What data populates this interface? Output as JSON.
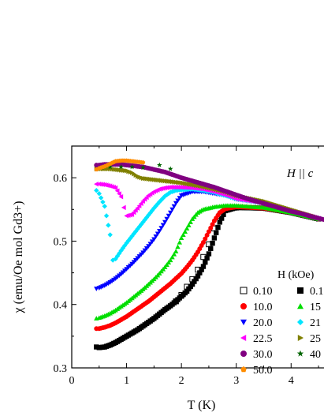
{
  "chart_data": {
    "type": "scatter",
    "title": "",
    "xlabel": "T (K)",
    "ylabel": "χ (emu/Oe mol Gd3+)",
    "xlim": [
      0,
      4.6
    ],
    "ylim": [
      0.3,
      0.65
    ],
    "x_ticks": [
      "0",
      "1",
      "2",
      "3",
      "4"
    ],
    "y_ticks": [
      "0.3",
      "0.4",
      "0.5",
      "0.6"
    ],
    "annotation": "H || c",
    "legend_title": "H (kOe)",
    "legend_position": "right-middle",
    "grid": false,
    "series": [
      {
        "name": "0.10",
        "marker": "open-square",
        "color": "#000000",
        "x": [
          1.9,
          2.0,
          2.1,
          2.2,
          2.3,
          2.4,
          2.5,
          2.6,
          2.7,
          2.8,
          3.0
        ],
        "y": [
          0.405,
          0.415,
          0.428,
          0.44,
          0.455,
          0.475,
          0.495,
          0.52,
          0.54,
          0.55,
          0.553
        ]
      },
      {
        "name": "0.1",
        "marker": "filled-square",
        "color": "#000000",
        "x": [
          0.45,
          0.5,
          0.6,
          0.7,
          0.8,
          0.9,
          1.0,
          1.1,
          1.2,
          1.3,
          1.4,
          1.5,
          1.6,
          1.7,
          1.8,
          1.9,
          2.0,
          2.1,
          2.2,
          2.3,
          2.4,
          2.5,
          2.6,
          2.7,
          2.8,
          3.0,
          3.5,
          4.0,
          4.5
        ],
        "y": [
          0.333,
          0.332,
          0.333,
          0.336,
          0.34,
          0.345,
          0.35,
          0.355,
          0.36,
          0.366,
          0.372,
          0.378,
          0.385,
          0.392,
          0.398,
          0.405,
          0.413,
          0.421,
          0.432,
          0.445,
          0.46,
          0.48,
          0.505,
          0.53,
          0.548,
          0.553,
          0.552,
          0.545,
          0.535
        ]
      },
      {
        "name": "10.0",
        "marker": "circle",
        "color": "#ff0000",
        "x": [
          0.45,
          0.5,
          0.6,
          0.7,
          0.8,
          0.9,
          1.0,
          1.1,
          1.2,
          1.3,
          1.4,
          1.5,
          1.6,
          1.7,
          1.8,
          1.9,
          2.0,
          2.1,
          2.2,
          2.3,
          2.4,
          2.5,
          2.6,
          2.7,
          2.8,
          3.0,
          3.5,
          4.0,
          4.5
        ],
        "y": [
          0.362,
          0.362,
          0.364,
          0.367,
          0.371,
          0.376,
          0.381,
          0.387,
          0.393,
          0.399,
          0.405,
          0.412,
          0.419,
          0.426,
          0.433,
          0.441,
          0.449,
          0.459,
          0.47,
          0.483,
          0.498,
          0.515,
          0.532,
          0.545,
          0.551,
          0.554,
          0.552,
          0.545,
          0.535
        ]
      },
      {
        "name": "15",
        "marker": "triangle-up",
        "color": "#00dd00",
        "x": [
          0.45,
          0.5,
          0.6,
          0.7,
          0.8,
          0.9,
          1.0,
          1.1,
          1.2,
          1.3,
          1.4,
          1.5,
          1.6,
          1.7,
          1.8,
          1.9,
          2.0,
          2.1,
          2.2,
          2.3,
          2.4,
          2.6,
          2.8,
          3.0,
          3.5,
          4.0,
          4.5
        ],
        "y": [
          0.378,
          0.379,
          0.382,
          0.386,
          0.391,
          0.397,
          0.403,
          0.41,
          0.417,
          0.424,
          0.432,
          0.44,
          0.449,
          0.459,
          0.47,
          0.484,
          0.505,
          0.52,
          0.535,
          0.545,
          0.55,
          0.554,
          0.556,
          0.556,
          0.553,
          0.545,
          0.535
        ]
      },
      {
        "name": "20.0",
        "marker": "triangle-down",
        "color": "#0000ff",
        "x": [
          0.45,
          0.5,
          0.6,
          0.7,
          0.8,
          0.9,
          1.0,
          1.1,
          1.2,
          1.3,
          1.4,
          1.5,
          1.6,
          1.7,
          1.8,
          1.9,
          2.0,
          2.2,
          2.4,
          2.6,
          2.8,
          3.0,
          3.5,
          4.0,
          4.5
        ],
        "y": [
          0.425,
          0.426,
          0.43,
          0.435,
          0.441,
          0.448,
          0.456,
          0.464,
          0.473,
          0.482,
          0.492,
          0.503,
          0.516,
          0.53,
          0.545,
          0.56,
          0.572,
          0.578,
          0.578,
          0.575,
          0.572,
          0.566,
          0.56,
          0.548,
          0.536
        ]
      },
      {
        "name": "21",
        "marker": "diamond",
        "color": "#00e5ff",
        "x": [
          0.45,
          0.5,
          0.6,
          0.7,
          0.75,
          0.8,
          0.9,
          1.0,
          1.1,
          1.2,
          1.3,
          1.4,
          1.5,
          1.6,
          1.7,
          1.8,
          1.9,
          2.0,
          2.2,
          2.4,
          2.6,
          2.8,
          3.0,
          3.5,
          4.0,
          4.5
        ],
        "y": [
          0.58,
          0.575,
          0.555,
          0.51,
          0.47,
          0.472,
          0.485,
          0.497,
          0.508,
          0.519,
          0.53,
          0.541,
          0.552,
          0.562,
          0.571,
          0.577,
          0.58,
          0.581,
          0.582,
          0.58,
          0.577,
          0.572,
          0.567,
          0.56,
          0.548,
          0.536
        ]
      },
      {
        "name": "22.5",
        "marker": "triangle-left",
        "color": "#ff00ff",
        "x": [
          0.45,
          0.5,
          0.6,
          0.7,
          0.8,
          0.9,
          0.95,
          1.0,
          1.1,
          1.2,
          1.3,
          1.4,
          1.5,
          1.6,
          1.7,
          1.8,
          1.9,
          2.0,
          2.2,
          2.4,
          2.6,
          2.8,
          3.0,
          3.5,
          4.0,
          4.5
        ],
        "y": [
          0.59,
          0.59,
          0.589,
          0.587,
          0.584,
          0.57,
          0.553,
          0.54,
          0.542,
          0.552,
          0.563,
          0.572,
          0.578,
          0.582,
          0.584,
          0.585,
          0.585,
          0.585,
          0.584,
          0.582,
          0.578,
          0.573,
          0.567,
          0.56,
          0.548,
          0.536
        ]
      },
      {
        "name": "25",
        "marker": "triangle-right",
        "color": "#808000",
        "x": [
          0.45,
          0.5,
          0.6,
          0.7,
          0.8,
          0.9,
          1.0,
          1.1,
          1.2,
          1.3,
          1.4,
          1.5,
          1.6,
          1.8,
          2.0,
          2.2,
          2.4,
          2.6,
          2.8,
          3.0,
          3.5,
          4.0,
          4.5
        ],
        "y": [
          0.614,
          0.614,
          0.614,
          0.614,
          0.613,
          0.612,
          0.611,
          0.608,
          0.602,
          0.599,
          0.598,
          0.597,
          0.596,
          0.594,
          0.592,
          0.589,
          0.586,
          0.582,
          0.578,
          0.572,
          0.563,
          0.55,
          0.537
        ]
      },
      {
        "name": "30.0",
        "marker": "circle",
        "color": "#800080",
        "x": [
          0.45,
          0.5,
          0.6,
          0.7,
          0.8,
          0.9,
          1.0,
          1.1,
          1.2,
          1.3,
          1.4,
          1.5,
          1.6,
          1.7,
          1.8,
          1.9,
          2.0,
          2.2,
          2.4,
          2.6,
          2.8,
          3.0,
          3.2,
          3.4,
          3.6,
          3.8,
          4.0,
          4.2,
          4.4,
          4.6
        ],
        "y": [
          0.62,
          0.62,
          0.621,
          0.621,
          0.621,
          0.621,
          0.62,
          0.619,
          0.618,
          0.617,
          0.615,
          0.613,
          0.611,
          0.609,
          0.606,
          0.603,
          0.6,
          0.595,
          0.59,
          0.585,
          0.579,
          0.573,
          0.567,
          0.562,
          0.557,
          0.552,
          0.547,
          0.543,
          0.538,
          0.534
        ]
      },
      {
        "name": "40",
        "marker": "star",
        "color": "#006400",
        "x": [
          0.55,
          0.7,
          0.9,
          1.1,
          1.3,
          1.6,
          1.8
        ],
        "y": [
          0.616,
          0.617,
          0.617,
          0.617,
          0.616,
          0.62,
          0.614
        ]
      },
      {
        "name": "50.0",
        "marker": "pentagon",
        "color": "#ff8c00",
        "x": [
          0.45,
          0.5,
          0.6,
          0.7,
          0.8,
          0.9,
          1.0,
          1.1,
          1.2,
          1.3
        ],
        "y": [
          0.613,
          0.615,
          0.618,
          0.622,
          0.626,
          0.627,
          0.627,
          0.626,
          0.625,
          0.624
        ]
      }
    ]
  }
}
